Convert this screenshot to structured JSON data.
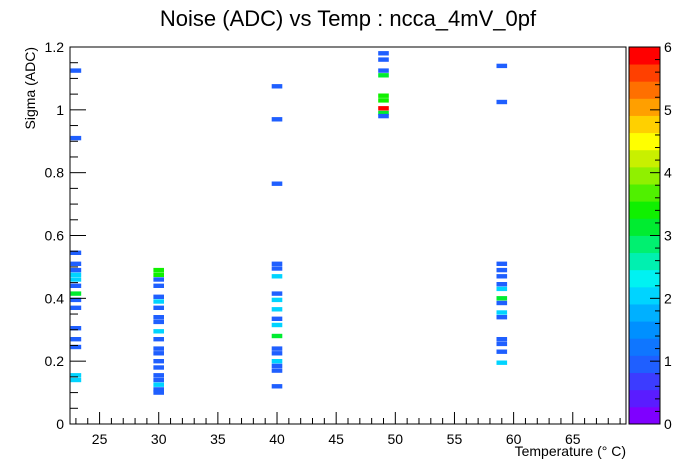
{
  "chart_data": {
    "type": "heatmap",
    "title": "Noise (ADC) vs Temp : ncca_4mV_0pf",
    "xlabel": "Temperature (° C)",
    "ylabel": "Sigma (ADC)",
    "xlim": [
      22.5,
      69.5
    ],
    "ylim": [
      0,
      1.2
    ],
    "x_ticks": [
      25,
      30,
      35,
      40,
      45,
      50,
      55,
      60,
      65
    ],
    "x_tick_labels": [
      "25",
      "30",
      "35",
      "40",
      "45",
      "50",
      "55",
      "60",
      "65"
    ],
    "y_ticks": [
      0,
      0.2,
      0.4,
      0.6,
      0.8,
      1.0,
      1.2
    ],
    "y_tick_labels": [
      "0",
      "0.2",
      "0.4",
      "0.6",
      "0.8",
      "1",
      "1.2"
    ],
    "x_bin_width": 0.9,
    "y_bin_width": 0.014,
    "zlim": [
      0,
      6
    ],
    "z_ticks": [
      0,
      1,
      2,
      3,
      4,
      5,
      6
    ],
    "z_tick_labels": [
      "0",
      "1",
      "2",
      "3",
      "4",
      "5",
      "6"
    ],
    "palette": [
      "#7f00ff",
      "#5a1cff",
      "#3c3cff",
      "#1f5fff",
      "#0f76ff",
      "#0090ff",
      "#00b0ff",
      "#00d4ff",
      "#00f2f2",
      "#00f0b0",
      "#00f070",
      "#00ec30",
      "#10f000",
      "#50f000",
      "#90f000",
      "#c8f000",
      "#ffff00",
      "#ffd000",
      "#ff9f00",
      "#ff7000",
      "#ff4000",
      "#ff0000"
    ],
    "points": [
      {
        "x": 23,
        "y": 1.125,
        "z": 1
      },
      {
        "x": 23,
        "y": 0.91,
        "z": 1
      },
      {
        "x": 23,
        "y": 0.545,
        "z": 1
      },
      {
        "x": 23,
        "y": 0.51,
        "z": 1
      },
      {
        "x": 23,
        "y": 0.49,
        "z": 1
      },
      {
        "x": 23,
        "y": 0.475,
        "z": 2
      },
      {
        "x": 23,
        "y": 0.46,
        "z": 2
      },
      {
        "x": 23,
        "y": 0.44,
        "z": 1
      },
      {
        "x": 23,
        "y": 0.415,
        "z": 3
      },
      {
        "x": 23,
        "y": 0.395,
        "z": 1
      },
      {
        "x": 23,
        "y": 0.37,
        "z": 1
      },
      {
        "x": 23,
        "y": 0.305,
        "z": 1
      },
      {
        "x": 23,
        "y": 0.27,
        "z": 1
      },
      {
        "x": 23,
        "y": 0.245,
        "z": 1
      },
      {
        "x": 23,
        "y": 0.155,
        "z": 2
      },
      {
        "x": 23,
        "y": 0.14,
        "z": 2
      },
      {
        "x": 30,
        "y": 0.49,
        "z": 3.5
      },
      {
        "x": 30,
        "y": 0.475,
        "z": 3.5
      },
      {
        "x": 30,
        "y": 0.46,
        "z": 1
      },
      {
        "x": 30,
        "y": 0.44,
        "z": 1
      },
      {
        "x": 30,
        "y": 0.405,
        "z": 1
      },
      {
        "x": 30,
        "y": 0.39,
        "z": 2
      },
      {
        "x": 30,
        "y": 0.37,
        "z": 1
      },
      {
        "x": 30,
        "y": 0.34,
        "z": 1
      },
      {
        "x": 30,
        "y": 0.325,
        "z": 1
      },
      {
        "x": 30,
        "y": 0.295,
        "z": 2
      },
      {
        "x": 30,
        "y": 0.27,
        "z": 1
      },
      {
        "x": 30,
        "y": 0.24,
        "z": 1
      },
      {
        "x": 30,
        "y": 0.225,
        "z": 1
      },
      {
        "x": 30,
        "y": 0.2,
        "z": 1
      },
      {
        "x": 30,
        "y": 0.18,
        "z": 1
      },
      {
        "x": 30,
        "y": 0.155,
        "z": 1
      },
      {
        "x": 30,
        "y": 0.14,
        "z": 1
      },
      {
        "x": 30,
        "y": 0.125,
        "z": 2
      },
      {
        "x": 30,
        "y": 0.11,
        "z": 1
      },
      {
        "x": 30,
        "y": 0.1,
        "z": 1
      },
      {
        "x": 40,
        "y": 1.075,
        "z": 1
      },
      {
        "x": 40,
        "y": 0.97,
        "z": 1
      },
      {
        "x": 40,
        "y": 0.765,
        "z": 1
      },
      {
        "x": 40,
        "y": 0.51,
        "z": 1
      },
      {
        "x": 40,
        "y": 0.495,
        "z": 1
      },
      {
        "x": 40,
        "y": 0.47,
        "z": 2
      },
      {
        "x": 40,
        "y": 0.415,
        "z": 1
      },
      {
        "x": 40,
        "y": 0.395,
        "z": 2
      },
      {
        "x": 40,
        "y": 0.365,
        "z": 2
      },
      {
        "x": 40,
        "y": 0.335,
        "z": 1
      },
      {
        "x": 40,
        "y": 0.315,
        "z": 2
      },
      {
        "x": 40,
        "y": 0.28,
        "z": 3
      },
      {
        "x": 40,
        "y": 0.24,
        "z": 1
      },
      {
        "x": 40,
        "y": 0.225,
        "z": 1
      },
      {
        "x": 40,
        "y": 0.2,
        "z": 2
      },
      {
        "x": 40,
        "y": 0.185,
        "z": 1
      },
      {
        "x": 40,
        "y": 0.17,
        "z": 1
      },
      {
        "x": 40,
        "y": 0.12,
        "z": 1
      },
      {
        "x": 49,
        "y": 1.18,
        "z": 1
      },
      {
        "x": 49,
        "y": 1.16,
        "z": 1
      },
      {
        "x": 49,
        "y": 1.125,
        "z": 1
      },
      {
        "x": 49,
        "y": 1.11,
        "z": 3
      },
      {
        "x": 49,
        "y": 1.045,
        "z": 3.5
      },
      {
        "x": 49,
        "y": 1.03,
        "z": 3.5
      },
      {
        "x": 49,
        "y": 1.005,
        "z": 6
      },
      {
        "x": 49,
        "y": 0.99,
        "z": 3
      },
      {
        "x": 49,
        "y": 0.98,
        "z": 1
      },
      {
        "x": 59,
        "y": 1.14,
        "z": 1
      },
      {
        "x": 59,
        "y": 1.025,
        "z": 1
      },
      {
        "x": 59,
        "y": 0.51,
        "z": 1
      },
      {
        "x": 59,
        "y": 0.49,
        "z": 1
      },
      {
        "x": 59,
        "y": 0.47,
        "z": 1
      },
      {
        "x": 59,
        "y": 0.445,
        "z": 1
      },
      {
        "x": 59,
        "y": 0.43,
        "z": 2
      },
      {
        "x": 59,
        "y": 0.4,
        "z": 3
      },
      {
        "x": 59,
        "y": 0.385,
        "z": 1
      },
      {
        "x": 59,
        "y": 0.355,
        "z": 2
      },
      {
        "x": 59,
        "y": 0.34,
        "z": 1
      },
      {
        "x": 59,
        "y": 0.27,
        "z": 1
      },
      {
        "x": 59,
        "y": 0.255,
        "z": 1
      },
      {
        "x": 59,
        "y": 0.23,
        "z": 1
      },
      {
        "x": 59,
        "y": 0.195,
        "z": 2
      }
    ]
  }
}
